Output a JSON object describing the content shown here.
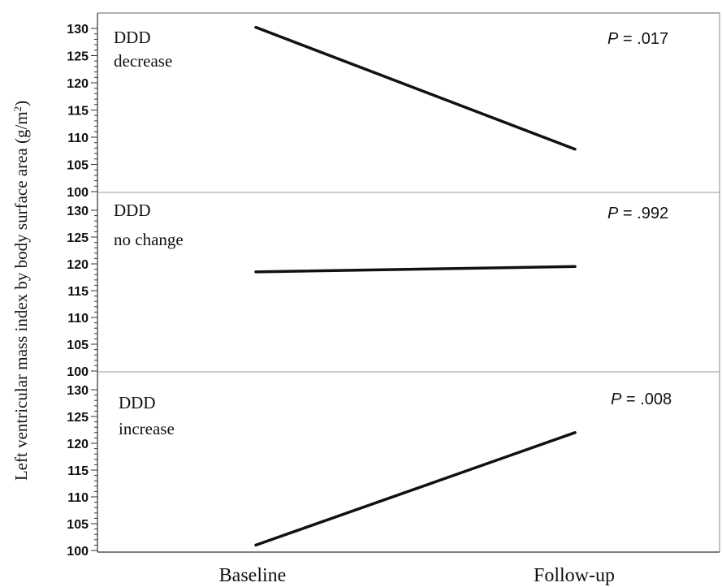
{
  "chart_data": {
    "type": "line",
    "ylabel": "Left ventricular mass index by body surface area (g/m²)",
    "ylabel_main": "Left ventricular mass index by body surface area (g/m",
    "ylabel_sup": "2",
    "ylabel_tail": ")",
    "categories": [
      "Baseline",
      "Follow-up"
    ],
    "ylim": [
      100,
      131
    ],
    "yticks": [
      "100",
      "105",
      "110",
      "115",
      "120",
      "125",
      "130"
    ],
    "grid": false,
    "panels": [
      {
        "label_line1": "DDD",
        "label_line2": "decrease",
        "p_prefix": "P",
        "p_rest": " = .017",
        "values": [
          130.2,
          107.8
        ]
      },
      {
        "label_line1": "DDD",
        "label_line2": "no change",
        "p_prefix": "P",
        "p_rest": " = .992",
        "values": [
          118.5,
          119.5
        ]
      },
      {
        "label_line1": "DDD",
        "label_line2": "increase",
        "p_prefix": "P",
        "p_rest": " = .008",
        "values": [
          101.0,
          122.0
        ]
      }
    ]
  }
}
